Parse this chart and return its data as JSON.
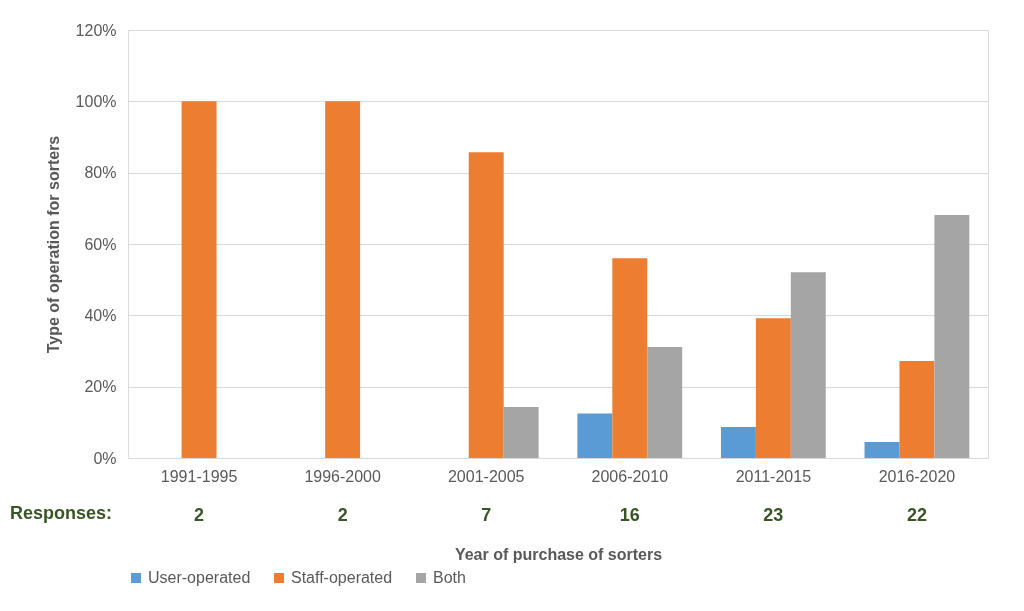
{
  "chart_data": {
    "type": "bar",
    "xlabel": "Year of purchase of sorters",
    "ylabel": "Type of operation for sorters",
    "categories": [
      "1991-1995",
      "1996-2000",
      "2001-2005",
      "2006-2010",
      "2011-2015",
      "2016-2020"
    ],
    "series": [
      {
        "name": "User-operated",
        "color": "#5b9bd5",
        "values": [
          0,
          0,
          0,
          12.5,
          8.7,
          4.5
        ]
      },
      {
        "name": "Staff-operated",
        "color": "#ed7d31",
        "values": [
          100,
          100,
          85.7,
          56,
          39.2,
          27.2
        ]
      },
      {
        "name": "Both",
        "color": "#a5a5a5",
        "values": [
          0,
          0,
          14.3,
          31.1,
          52.1,
          68.1
        ]
      }
    ],
    "ylim": [
      0,
      120
    ],
    "yticks": [
      {
        "value": 0,
        "label": "0%"
      },
      {
        "value": 20,
        "label": "20%"
      },
      {
        "value": 40,
        "label": "40%"
      },
      {
        "value": 60,
        "label": "60%"
      },
      {
        "value": 80,
        "label": "80%"
      },
      {
        "value": 100,
        "label": "100%"
      },
      {
        "value": 120,
        "label": "120%"
      }
    ],
    "annotations": [
      "Responses:",
      "2",
      "2",
      "7",
      "16",
      "23",
      "22"
    ],
    "grid": "y",
    "legend": "bottom"
  }
}
